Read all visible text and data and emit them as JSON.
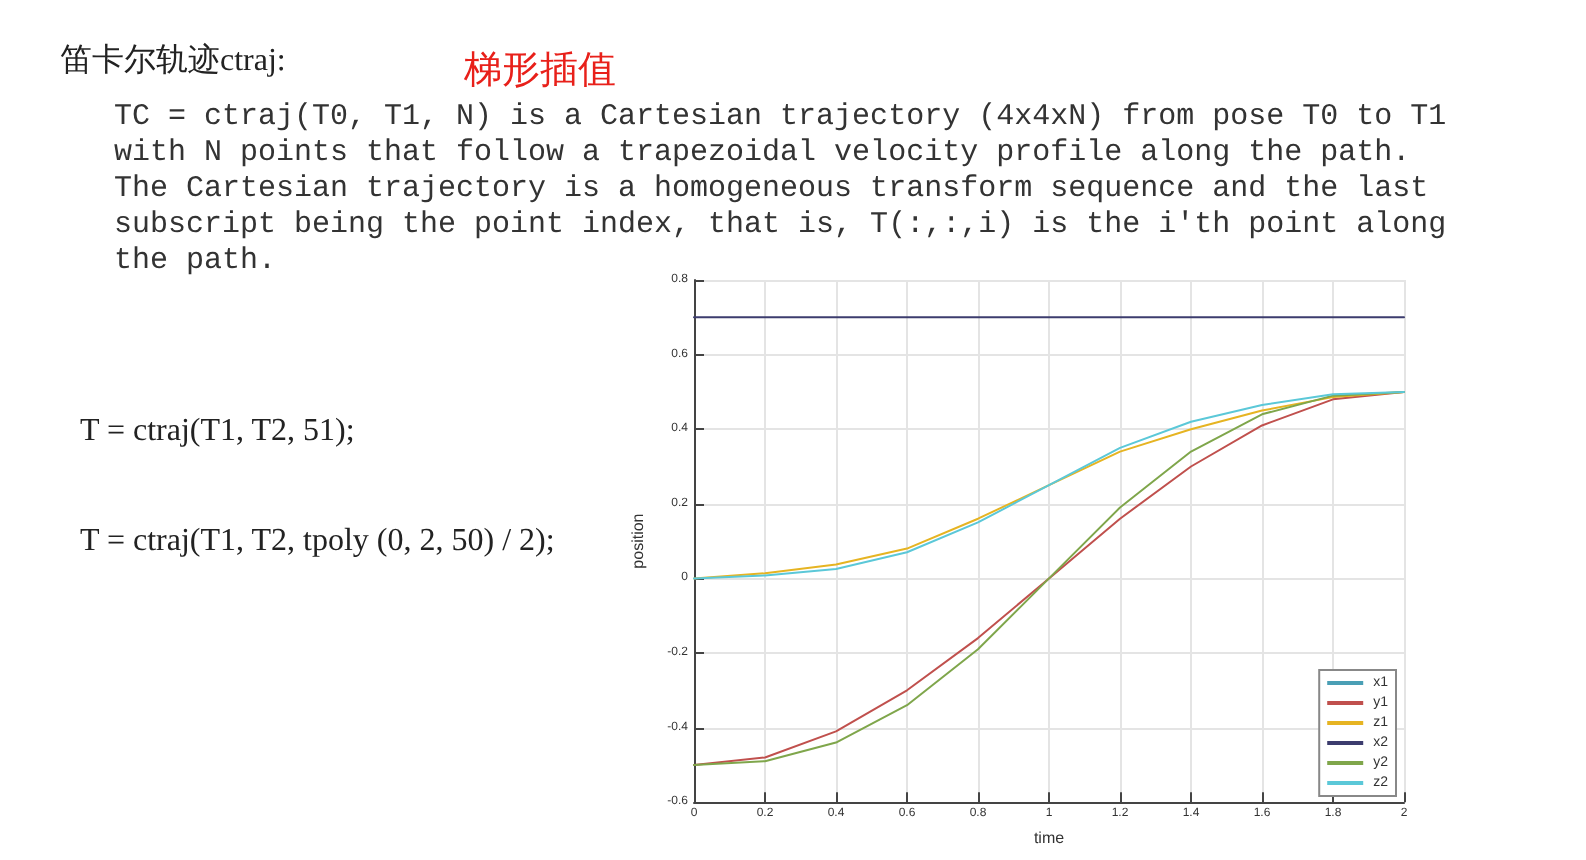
{
  "chart_data": {
    "type": "line",
    "title": "笛卡尔轨迹ctraj:",
    "subtitle": "梯形插值",
    "xlabel": "time",
    "ylabel": "position",
    "annotations": [
      "TC = ctraj(T0, T1, N) is a Cartesian trajectory (4x4xN) from pose T0 to T1\nwith N points that follow a trapezoidal velocity profile along the path.\nThe Cartesian trajectory is a homogeneous transform sequence and the last\nsubscript being the point index, that is, T(:,:,i) is the i'th point along\nthe path.",
      "T = ctraj(T1, T2, 51);",
      "T = ctraj(T1, T2, tpoly (0, 2, 50) / 2);"
    ],
    "x": [
      0,
      0.2,
      0.4,
      0.6,
      0.8,
      1.0,
      1.2,
      1.4,
      1.6,
      1.8,
      2.0
    ],
    "series": [
      {
        "name": "x1",
        "color": "#4a9fb5",
        "values": [
          null,
          null,
          null,
          null,
          null,
          null,
          null,
          null,
          null,
          null,
          null
        ]
      },
      {
        "name": "y1",
        "color": "#c0504d",
        "values": [
          -0.5,
          -0.48,
          -0.41,
          -0.3,
          -0.16,
          0,
          0.16,
          0.3,
          0.41,
          0.48,
          0.5
        ]
      },
      {
        "name": "z1",
        "color": "#e6b422",
        "values": [
          0,
          0.014,
          0.037,
          0.08,
          0.16,
          0.25,
          0.34,
          0.4,
          0.45,
          0.486,
          0.5
        ]
      },
      {
        "name": "x2",
        "color": "#3c3c6e",
        "values": [
          0.7,
          0.7,
          0.7,
          0.7,
          0.7,
          0.7,
          0.7,
          0.7,
          0.7,
          0.7,
          0.7
        ]
      },
      {
        "name": "y2",
        "color": "#7fa64b",
        "values": [
          -0.5,
          -0.49,
          -0.44,
          -0.34,
          -0.19,
          0,
          0.19,
          0.34,
          0.44,
          0.49,
          0.5
        ]
      },
      {
        "name": "z2",
        "color": "#5bc8d8",
        "values": [
          0,
          0.008,
          0.025,
          0.07,
          0.15,
          0.25,
          0.35,
          0.42,
          0.465,
          0.494,
          0.5
        ]
      }
    ],
    "xlim": [
      0,
      2
    ],
    "xticks": [
      0,
      0.2,
      0.4,
      0.6,
      0.8,
      1,
      1.2,
      1.4,
      1.6,
      1.8,
      2
    ],
    "ylim": [
      -0.6,
      0.8
    ],
    "yticks": [
      -0.6,
      -0.4,
      -0.2,
      0,
      0.2,
      0.4,
      0.6,
      0.8
    ],
    "grid": true,
    "legend": "bottom right",
    "marker": "none",
    "line_style": "solid"
  }
}
